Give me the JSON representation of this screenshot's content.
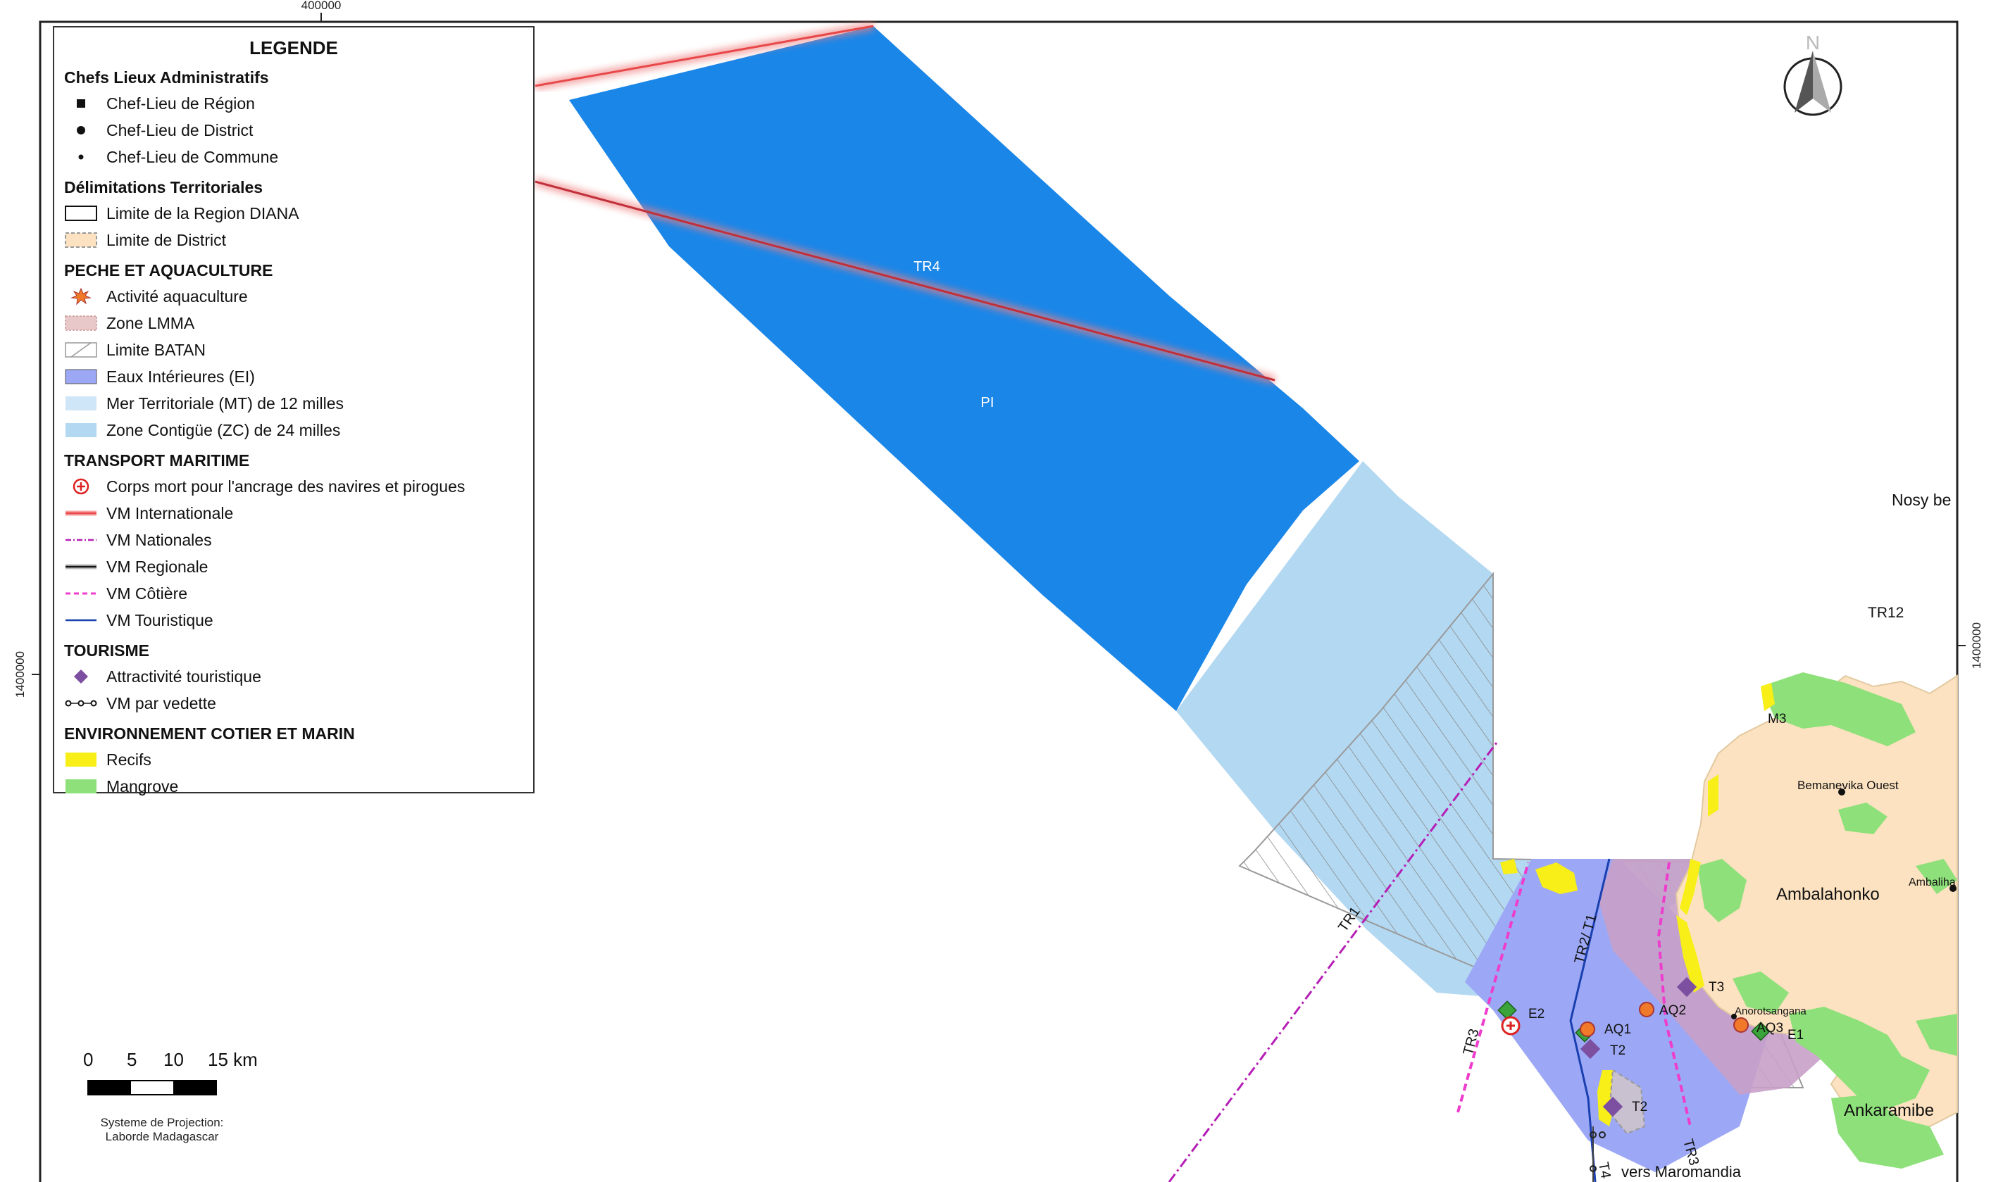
{
  "map": {
    "frame": {
      "coord_top": "400000",
      "coord_left": "1400000",
      "coord_right": "1400000"
    },
    "north_arrow": {
      "label": "N"
    },
    "labels": {
      "tr4": "TR4",
      "pi": "PI",
      "tr1": "TR1",
      "tr2_t1": "TR2/ T1",
      "tr3_left": "TR3",
      "tr3_bottom": "TR3",
      "t4": "T4",
      "tr12": "TR12",
      "nosy_be": "Nosy be",
      "m3": "M3",
      "bemanevika": "Bemanevika Ouest",
      "ambaliha": "Ambaliha",
      "ambalahonko": "Ambalahonko",
      "anorotsangana": "Anorotsangana",
      "ankaramibe": "Ankaramibe",
      "vers_maromandia": "vers Maromandia",
      "e1": "E1",
      "e2": "E2",
      "aq1": "AQ1",
      "aq2": "AQ2",
      "aq3": "AQ3",
      "t2_a": "T2",
      "t2_b": "T2",
      "t3": "T3"
    },
    "colors": {
      "mt_dark": "#1a86e8",
      "zc_light": "#b3d8f2",
      "ei": "#9ca8f5",
      "lmma": "#c8a0c8",
      "land": "#fce2c0",
      "mangrove": "#8ee07a",
      "recifs": "#f7ef17",
      "vm_int": "#e8484a",
      "vm_nat": "#b51fb5",
      "vm_cot": "#ee3ccc",
      "vm_tour": "#1a3fb0",
      "tourisme": "#7c4fa0"
    }
  },
  "legend": {
    "title": "LEGENDE",
    "sections": {
      "chefs": "Chefs Lieux Administratifs",
      "delim": "Délimitations Territoriales",
      "peche": "PECHE ET AQUACULTURE",
      "transport": "TRANSPORT MARITIME",
      "tourisme": "TOURISME",
      "env": "ENVIRONNEMENT COTIER ET MARIN"
    },
    "items": {
      "chef_region": "Chef-Lieu de Région",
      "chef_district": "Chef-Lieu de District",
      "chef_commune": "Chef-Lieu de Commune",
      "limite_region": "Limite de la Region DIANA",
      "limite_district": "Limite de District",
      "activite_aqua": "Activité aquaculture",
      "zone_lmma": "Zone LMMA",
      "limite_batan": "Limite BATAN",
      "eaux_int": "Eaux Intérieures (EI)",
      "mer_terr": "Mer Territoriale (MT) de 12 milles",
      "zone_contigue": "Zone Contigüe (ZC) de 24 milles",
      "corps_mort": "Corps mort pour l'ancrage des navires et pirogues",
      "vm_int": "VM Internationale",
      "vm_nat": "VM Nationales",
      "vm_reg": "VM Regionale",
      "vm_cot": "VM Côtière",
      "vm_tour": "VM Touristique",
      "attractivite": "Attractivité touristique",
      "vm_vedette": "VM  par vedette",
      "recifs": "Recifs",
      "mangrove": "Mangrove"
    }
  },
  "scalebar": {
    "ticks": [
      "0",
      "5",
      "10",
      "15 km"
    ]
  },
  "projection": {
    "line1": "Systeme de Projection:",
    "line2": "Laborde Madagascar"
  }
}
